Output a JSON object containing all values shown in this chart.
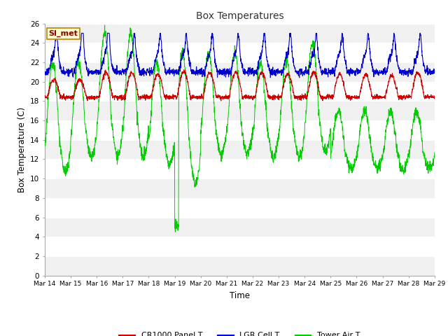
{
  "title": "Box Temperatures",
  "xlabel": "Time",
  "ylabel": "Box Temperature (C)",
  "ylim": [
    0,
    26
  ],
  "yticks": [
    0,
    2,
    4,
    6,
    8,
    10,
    12,
    14,
    16,
    18,
    20,
    22,
    24,
    26
  ],
  "x_labels": [
    "Mar 14",
    "Mar 15",
    "Mar 16",
    "Mar 17",
    "Mar 18",
    "Mar 19",
    "Mar 20",
    "Mar 21",
    "Mar 22",
    "Mar 23",
    "Mar 24",
    "Mar 25",
    "Mar 26",
    "Mar 27",
    "Mar 28",
    "Mar 29"
  ],
  "legend_labels": [
    "CR1000 Panel T",
    "LGR Cell T",
    "Tower Air T"
  ],
  "legend_colors": [
    "#cc0000",
    "#0000cc",
    "#00cc00"
  ],
  "site_label": "SI_met",
  "fig_bg": "#ffffff",
  "plot_bg": "#ffffff",
  "band_light": "#f0f0f0",
  "band_dark": "#e0e0e0",
  "title_color": "#333333",
  "n_days": 15,
  "n_per_day": 144
}
